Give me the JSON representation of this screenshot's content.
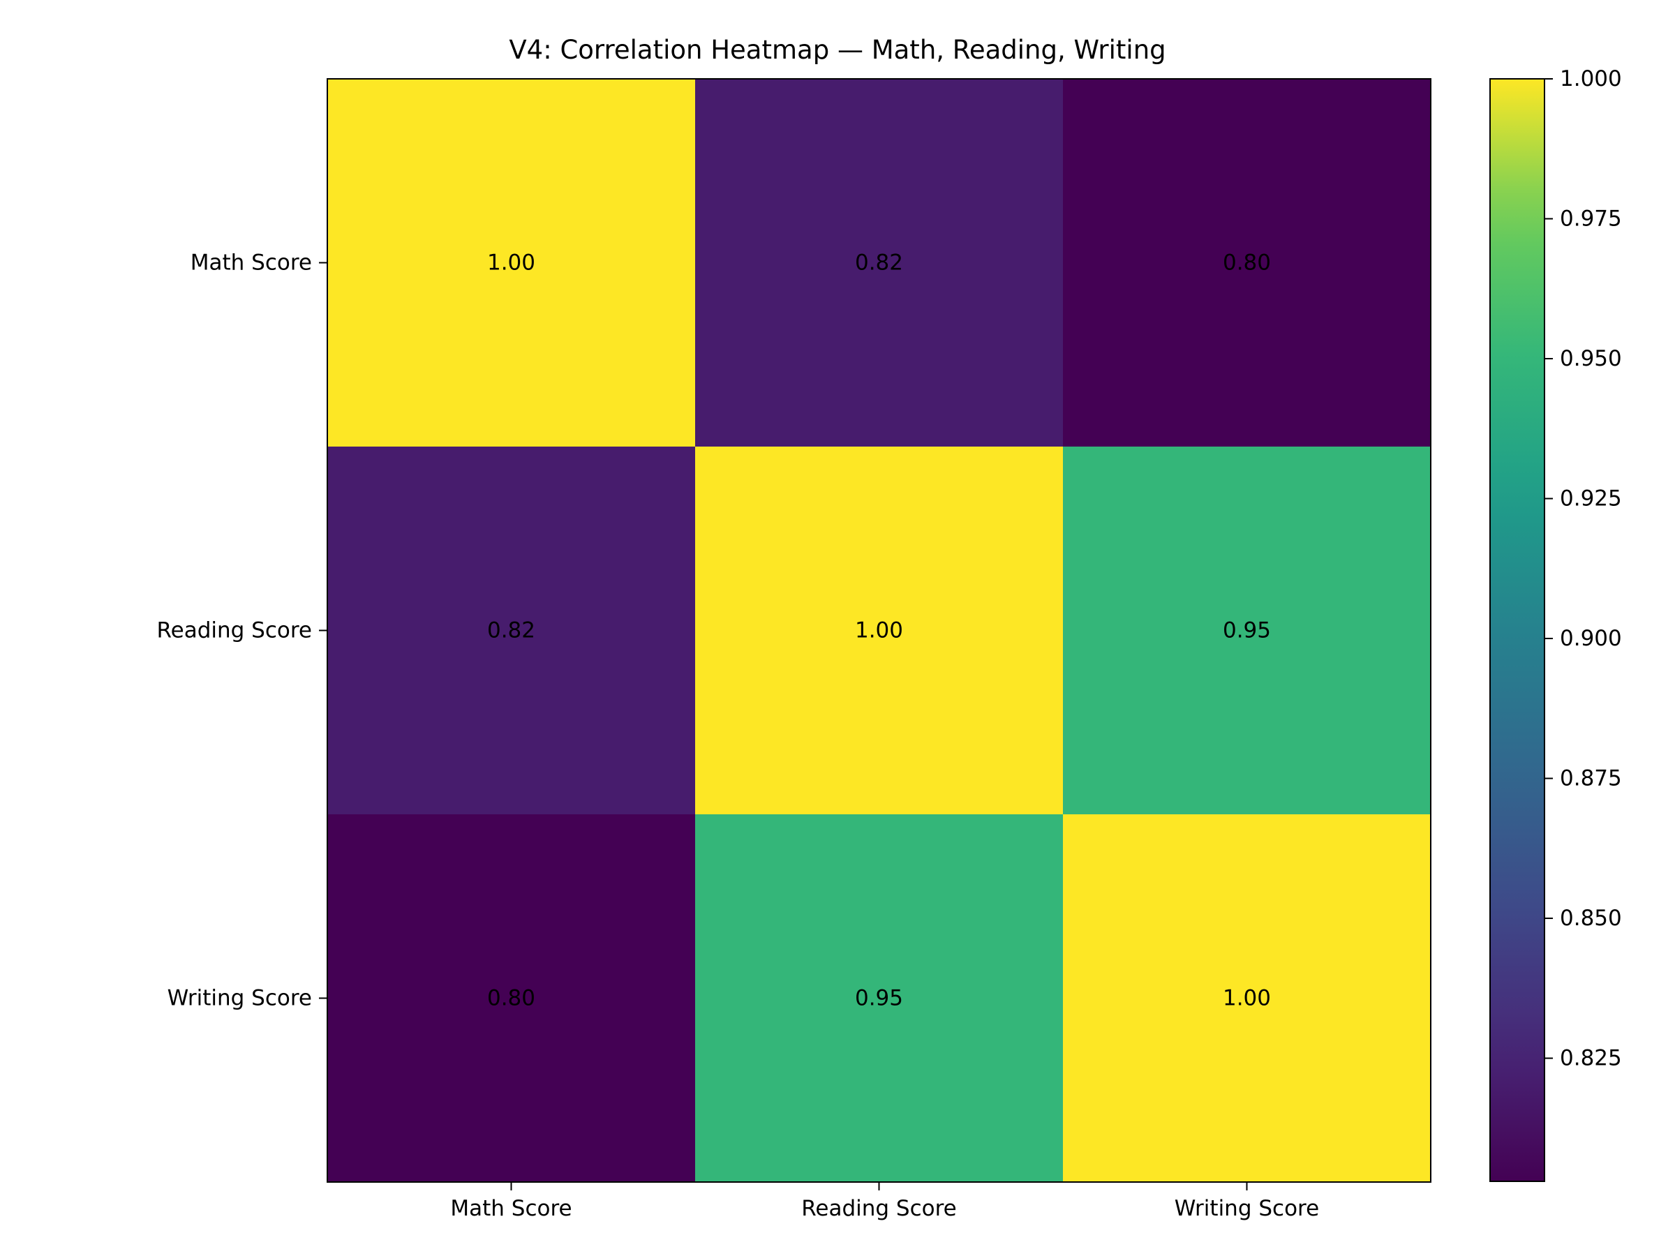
{
  "chart_data": {
    "type": "heatmap",
    "title": "V4: Correlation Heatmap — Math, Reading, Writing",
    "xlabel": "",
    "ylabel": "",
    "x_categories": [
      "Math Score",
      "Reading Score",
      "Writing Score"
    ],
    "y_categories": [
      "Math Score",
      "Reading Score",
      "Writing Score"
    ],
    "values": [
      [
        1.0,
        0.82,
        0.8
      ],
      [
        0.82,
        1.0,
        0.95
      ],
      [
        0.8,
        0.95,
        1.0
      ]
    ],
    "cell_labels": [
      [
        "1.00",
        "0.82",
        "0.80"
      ],
      [
        "0.82",
        "1.00",
        "0.95"
      ],
      [
        "0.80",
        "0.95",
        "1.00"
      ]
    ],
    "colormap": "viridis",
    "colorbar": {
      "vmin": 0.803,
      "vmax": 1.0,
      "ticks": [
        0.825,
        0.85,
        0.875,
        0.9,
        0.925,
        0.95,
        0.975,
        1.0
      ],
      "tick_labels": [
        "0.825",
        "0.850",
        "0.875",
        "0.900",
        "0.925",
        "0.950",
        "0.975",
        "1.000"
      ],
      "location": "right"
    },
    "grid": false
  }
}
